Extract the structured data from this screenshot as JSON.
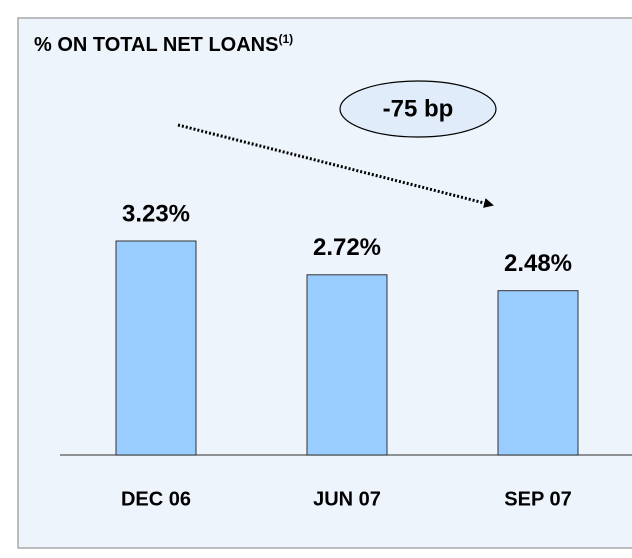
{
  "chart_data": {
    "type": "bar",
    "title": "% ON TOTAL NET LOANS",
    "title_superscript": "(1)",
    "annotation": "-75 bp",
    "categories": [
      "DEC 06",
      "JUN 07",
      "SEP 07"
    ],
    "values": [
      3.23,
      2.72,
      2.48
    ],
    "value_labels": [
      "3.23%",
      "2.72%",
      "2.48%"
    ],
    "color": "#99ccff"
  }
}
